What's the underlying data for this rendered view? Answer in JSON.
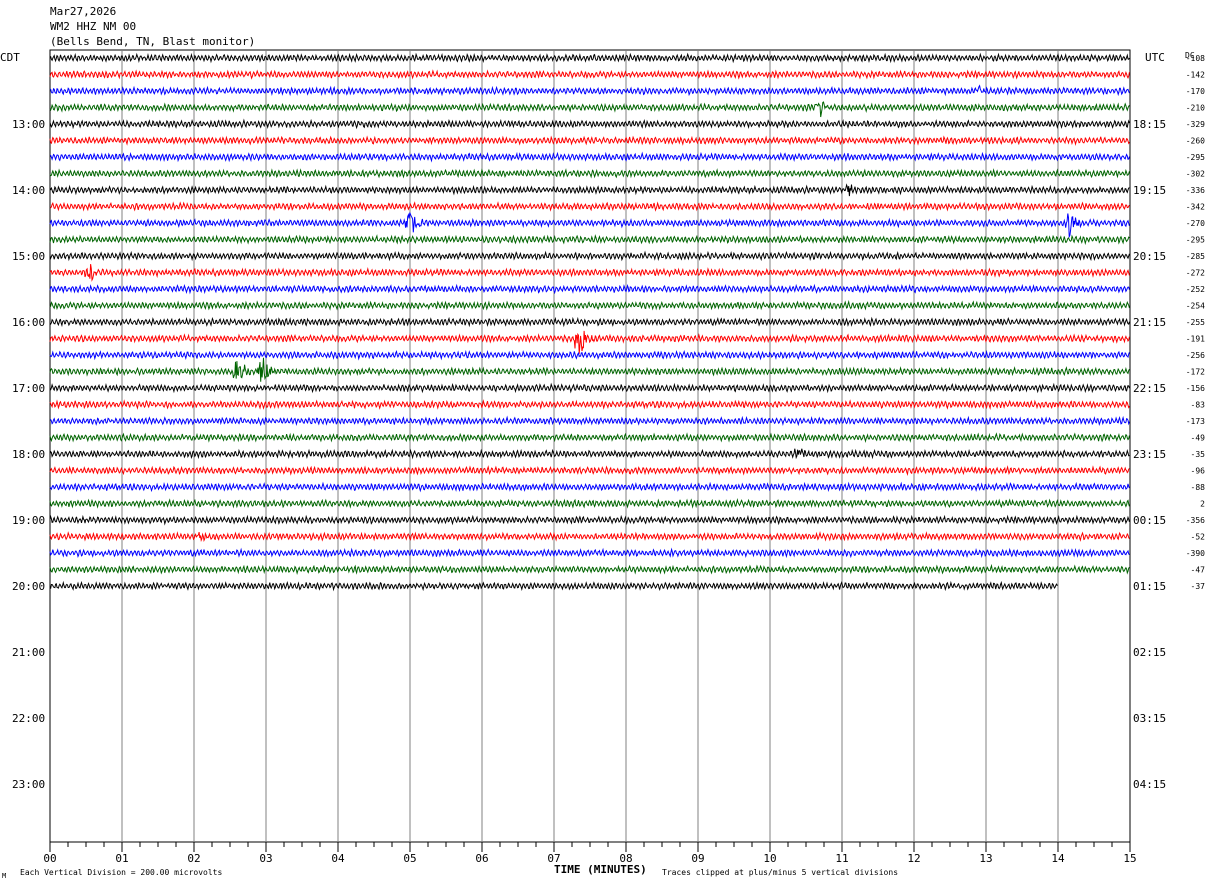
{
  "header": {
    "date": "Mar27,2026",
    "station": "WM2 HHZ NM 00",
    "location": "(Bells Bend, TN, Blast monitor)"
  },
  "left_timezone": "CDT",
  "right_timezone": "UTC",
  "dc_label": "DC",
  "footer": {
    "scale_note": "Each Vertical Division =  200.00 microvolts",
    "axis_title": "TIME (MINUTES)",
    "clip_note": "Traces clipped at plus/minus 5 vertical divisions",
    "corner_mark": "M"
  },
  "colors": {
    "trace_cycle": [
      "#000000",
      "#ff0000",
      "#0000ff",
      "#006400"
    ],
    "grid": "#808080",
    "frame": "#000000"
  },
  "chart_data": {
    "type": "line",
    "title": "",
    "xlabel": "TIME (MINUTES)",
    "ylabel": "",
    "xlim": [
      0,
      15
    ],
    "x_ticks": [
      "00",
      "01",
      "02",
      "03",
      "04",
      "05",
      "06",
      "07",
      "08",
      "09",
      "10",
      "11",
      "12",
      "13",
      "14",
      "15"
    ],
    "grid": true,
    "trace_minutes": 15,
    "rows_total": 48,
    "last_trace_end_minute": 14,
    "hour_labels_left": [
      "13:00",
      "14:00",
      "15:00",
      "16:00",
      "17:00",
      "18:00",
      "19:00",
      "20:00",
      "21:00",
      "22:00",
      "23:00"
    ],
    "hour_labels_right": [
      "18:15",
      "19:15",
      "20:15",
      "21:15",
      "22:15",
      "23:15",
      "00:15",
      "01:15",
      "02:15",
      "03:15",
      "04:15"
    ],
    "dc_offsets": [
      -108,
      -142,
      -170,
      -210,
      -329,
      -260,
      -295,
      -302,
      -336,
      -342,
      -270,
      -295,
      -285,
      -272,
      -252,
      -254,
      -255,
      -191,
      -256,
      -172,
      -156,
      -83,
      -173,
      -49,
      -35,
      -96,
      -88,
      2,
      -356,
      -52,
      -390,
      -47,
      -37
    ],
    "events": [
      {
        "row": 10,
        "minute": 5.0,
        "amplitude": 1.6
      },
      {
        "row": 10,
        "minute": 14.15,
        "amplitude": 1.4
      },
      {
        "row": 13,
        "minute": 0.55,
        "amplitude": 0.7
      },
      {
        "row": 17,
        "minute": 7.35,
        "amplitude": 2.0
      },
      {
        "row": 19,
        "minute": 2.6,
        "amplitude": 1.6
      },
      {
        "row": 19,
        "minute": 2.95,
        "amplitude": 1.4
      },
      {
        "row": 3,
        "minute": 10.7,
        "amplitude": 0.8
      },
      {
        "row": 8,
        "minute": 11.1,
        "amplitude": 0.6
      },
      {
        "row": 24,
        "minute": 10.4,
        "amplitude": 0.5
      },
      {
        "row": 29,
        "minute": 2.1,
        "amplitude": 0.5
      },
      {
        "row": 2,
        "minute": 12.9,
        "amplitude": 0.5
      }
    ]
  }
}
